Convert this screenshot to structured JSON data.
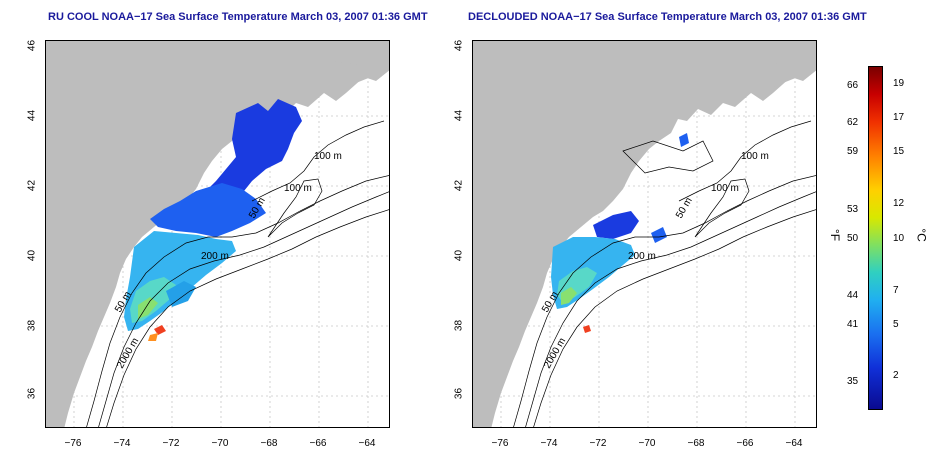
{
  "titles": {
    "left": "RU COOL NOAA−17 Sea Surface Temperature March 03, 2007 01:36 GMT",
    "right": "DECLOUDED NOAA−17 Sea Surface Temperature March 03, 2007 01:36 GMT"
  },
  "axes": {
    "lat_ticks": [
      "46",
      "44",
      "42",
      "40",
      "38",
      "36"
    ],
    "lon_ticks": [
      "−76",
      "−74",
      "−72",
      "−70",
      "−68",
      "−66",
      "−64"
    ]
  },
  "contour_labels": {
    "left": [
      "100 m",
      "100 m",
      "50 m",
      "200 m",
      "50 m",
      "2000 m"
    ],
    "right": [
      "100 m",
      "100 m",
      "50 m",
      "200 m",
      "50 m",
      "2000 m"
    ]
  },
  "colorbar": {
    "fahrenheit_ticks": [
      "66",
      "62",
      "59",
      "53",
      "50",
      "44",
      "41",
      "35"
    ],
    "celsius_ticks": [
      "19",
      "17",
      "15",
      "12",
      "10",
      "7",
      "5",
      "2"
    ],
    "f_unit": "°F",
    "c_unit": "°C"
  },
  "colors": {
    "land": "#bdbdbd",
    "title": "#1a1a9c",
    "contour": "#000000"
  }
}
